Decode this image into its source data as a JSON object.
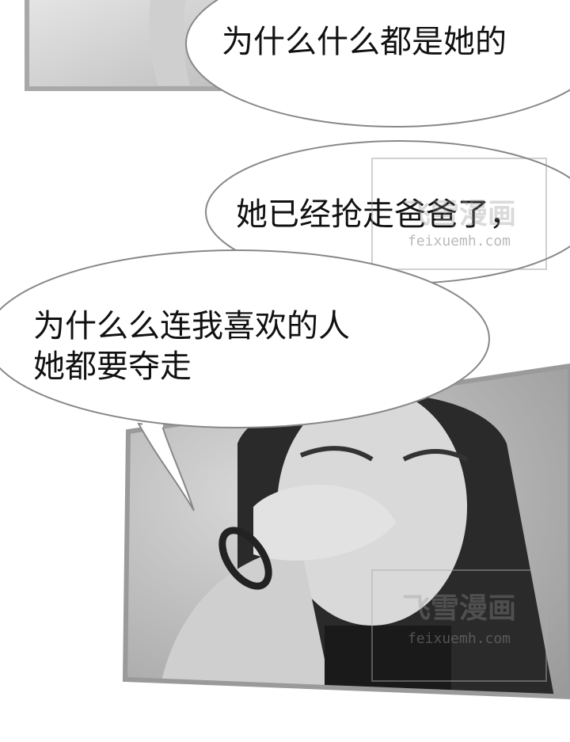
{
  "bubbles": [
    {
      "lines": [
        "为什么什么都是她的"
      ]
    },
    {
      "lines": [
        "她已经抢走爸爸了，"
      ]
    },
    {
      "lines": [
        "为什么么连我喜欢的人",
        "她都要夺走"
      ]
    }
  ],
  "watermarks": [
    {
      "logo": "飞雪漫画",
      "url": "feixuemh.com"
    },
    {
      "logo": "飞雪漫画",
      "url": "feixuemh.com"
    }
  ]
}
